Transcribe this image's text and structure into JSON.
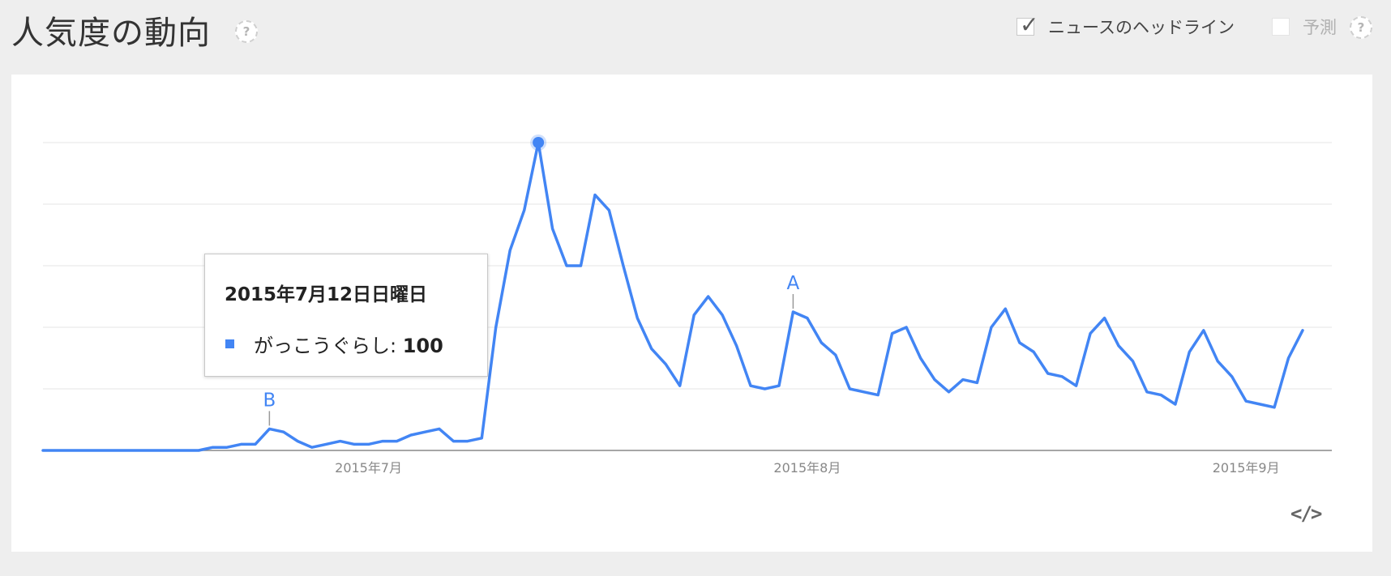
{
  "header": {
    "title": "人気度の動向",
    "help_glyph": "?"
  },
  "options": {
    "headlines": {
      "label": "ニュースのヘッドライン",
      "checked": true,
      "check_glyph": "✓"
    },
    "forecast": {
      "label": "予測",
      "checked": false
    }
  },
  "tooltip": {
    "date": "2015年7月12日日曜日",
    "series_label": "がっこうぐらし: ",
    "value": "100"
  },
  "embed": {
    "glyph": "</>"
  },
  "colors": {
    "series": "#4285f4",
    "grid": "#e6e6e6",
    "axis": "#888888",
    "annotation_text": "#4285f4",
    "tick_text": "#888888"
  },
  "chart_data": {
    "type": "line",
    "ylim": [
      0,
      100
    ],
    "grid_lines": 5,
    "x_tick_labels": [
      {
        "label": "2015年7月",
        "index": 23
      },
      {
        "label": "2015年8月",
        "index": 54
      },
      {
        "label": "2015年9月",
        "index": 85
      }
    ],
    "series": [
      {
        "name": "がっこうぐらし",
        "values": [
          0,
          0,
          0,
          0,
          0,
          0,
          0,
          0,
          0,
          0,
          0,
          0,
          1,
          1,
          2,
          2,
          7,
          6,
          3,
          1,
          2,
          3,
          2,
          2,
          3,
          3,
          5,
          6,
          7,
          3,
          3,
          4,
          40,
          65,
          78,
          100,
          72,
          60,
          60,
          83,
          78,
          60,
          43,
          33,
          28,
          21,
          44,
          50,
          44,
          34,
          21,
          20,
          21,
          45,
          43,
          35,
          31,
          20,
          19,
          18,
          38,
          40,
          30,
          23,
          19,
          23,
          22,
          40,
          46,
          35,
          32,
          25,
          24,
          21,
          38,
          43,
          34,
          29,
          19,
          18,
          15,
          32,
          39,
          29,
          24,
          16,
          15,
          14,
          30,
          39
        ]
      }
    ],
    "peak_index": 35,
    "annotations": [
      {
        "label": "B",
        "index": 16
      },
      {
        "label": "A",
        "index": 53
      }
    ]
  }
}
